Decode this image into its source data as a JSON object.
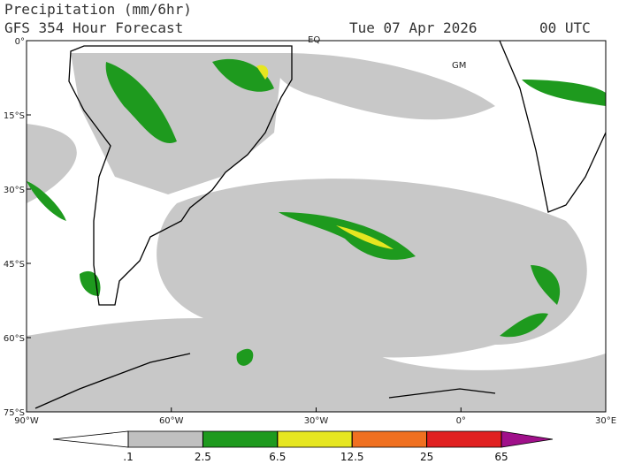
{
  "header": {
    "title": "Precipitation (mm/6hr)",
    "subtitle": "GFS 354 Hour Forecast",
    "date": "Tue 07 Apr 2026",
    "time": "00 UTC"
  },
  "map": {
    "xlim": [
      -90,
      30
    ],
    "ylim": [
      -75,
      0
    ],
    "xticks": [
      {
        "value": -90,
        "label": "90°W"
      },
      {
        "value": -60,
        "label": "60°W"
      },
      {
        "value": -30,
        "label": "30°W"
      },
      {
        "value": 0,
        "label": "0°"
      },
      {
        "value": 30,
        "label": "30°E"
      }
    ],
    "yticks": [
      {
        "value": 0,
        "label": "0°"
      },
      {
        "value": -15,
        "label": "15°S"
      },
      {
        "value": -30,
        "label": "30°S"
      },
      {
        "value": -45,
        "label": "45°S"
      },
      {
        "value": -60,
        "label": "60°S"
      },
      {
        "value": -75,
        "label": "75°S"
      }
    ],
    "labels": [
      "EQ",
      "GM"
    ]
  },
  "colorbar": {
    "ticks": [
      {
        "value": 0.1,
        "label": ".1"
      },
      2.5,
      6.5,
      12.5,
      25,
      65
    ],
    "colors": [
      "#ffffff",
      "#c0c0c0",
      "#1e9a1e",
      "#e6e620",
      "#f07020",
      "#e02020",
      "#a0108a"
    ]
  }
}
